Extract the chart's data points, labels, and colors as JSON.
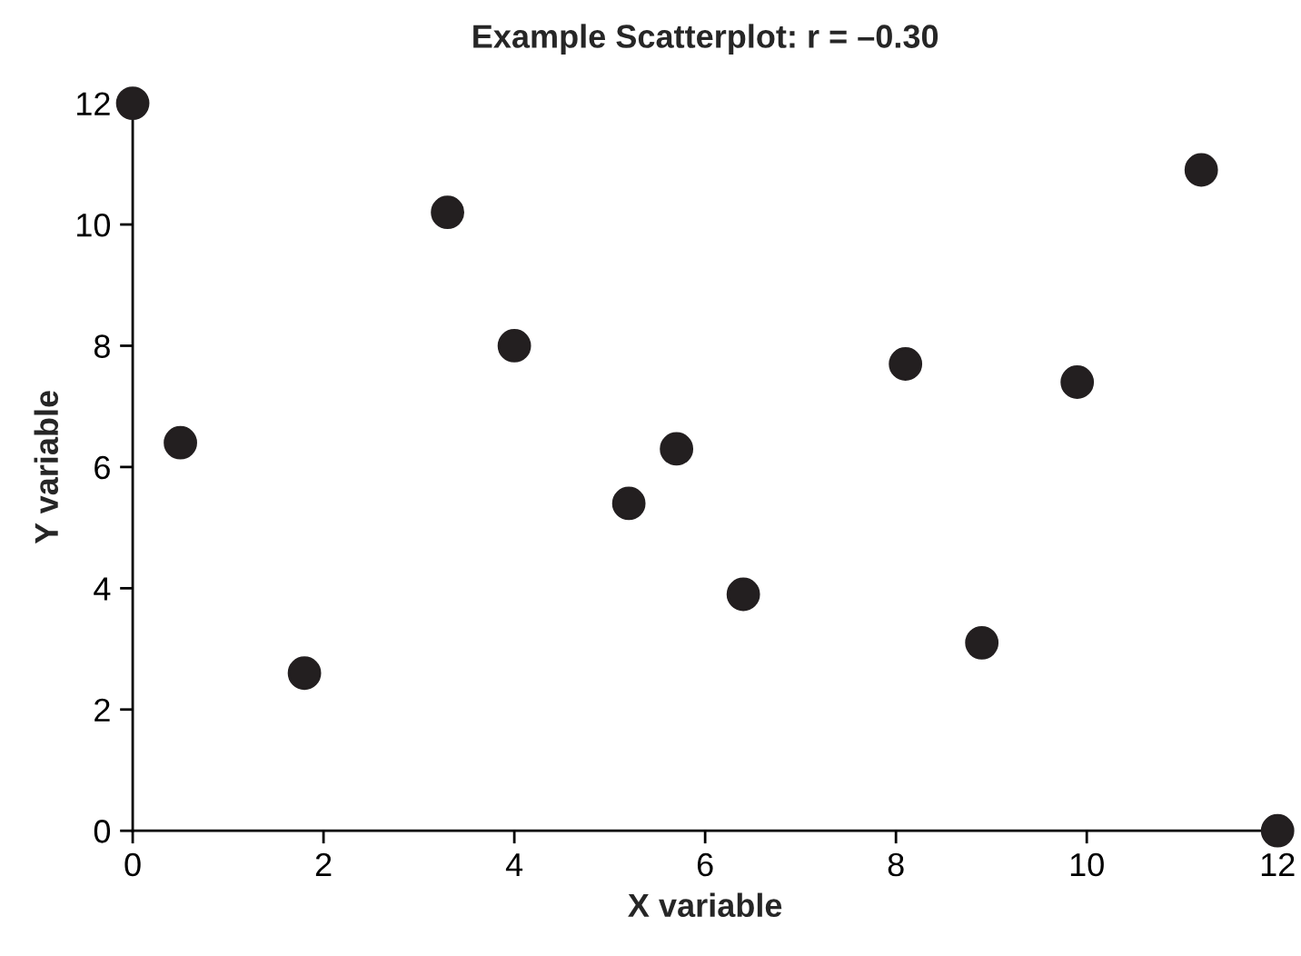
{
  "chart_data": {
    "type": "scatter",
    "title": "Example Scatterplot: r = –0.30",
    "xlabel": "X variable",
    "ylabel": "Y variable",
    "series": [
      {
        "color": "#231f20",
        "x": [
          0,
          0.5,
          1.8,
          3.3,
          4.0,
          5.2,
          5.7,
          6.4,
          8.1,
          8.9,
          9.9,
          11.2,
          12
        ],
        "values": [
          12,
          6.4,
          2.6,
          10.2,
          8.0,
          5.4,
          6.3,
          3.9,
          7.7,
          3.1,
          7.4,
          10.9,
          0
        ]
      }
    ],
    "xlim": [
      0,
      12
    ],
    "ylim": [
      0,
      12
    ],
    "xticks": [
      0,
      2,
      4,
      6,
      8,
      10,
      12
    ],
    "yticks": [
      0,
      2,
      4,
      6,
      8,
      10,
      12
    ],
    "marker": "circle",
    "grid": false,
    "legend": false
  }
}
